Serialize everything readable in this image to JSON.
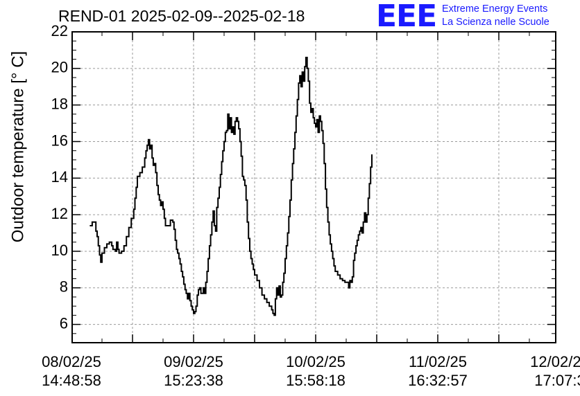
{
  "chart_data": {
    "type": "line",
    "title": "REND-01 2025-02-09--2025-02-18",
    "ylabel": "Outdoor temperature [° C]",
    "xlabel": "",
    "ylim": [
      5,
      22
    ],
    "yticks": [
      6,
      8,
      10,
      12,
      14,
      16,
      18,
      20,
      22
    ],
    "xlim": [
      0,
      4
    ],
    "xtick_labels": [
      {
        "x": 0,
        "date": "08/02/25",
        "time": "14:48:58"
      },
      {
        "x": 1,
        "date": "09/02/25",
        "time": "15:23:38"
      },
      {
        "x": 2,
        "date": "10/02/25",
        "time": "15:58:18"
      },
      {
        "x": 3,
        "date": "11/02/25",
        "time": "16:32:57"
      },
      {
        "x": 4,
        "date": "12/02/25",
        "time": "17:07:3"
      }
    ],
    "grid": true,
    "series": [
      {
        "name": "",
        "color": "#000000",
        "points": [
          [
            0.15,
            11.4
          ],
          [
            0.17,
            11.6
          ],
          [
            0.19,
            11.6
          ],
          [
            0.2,
            11.1
          ],
          [
            0.21,
            10.8
          ],
          [
            0.22,
            10.3
          ],
          [
            0.23,
            9.8
          ],
          [
            0.24,
            9.4
          ],
          [
            0.25,
            9.9
          ],
          [
            0.27,
            10.2
          ],
          [
            0.29,
            10.4
          ],
          [
            0.31,
            10.5
          ],
          [
            0.33,
            10.3
          ],
          [
            0.34,
            10.1
          ],
          [
            0.36,
            10.0
          ],
          [
            0.37,
            10.5
          ],
          [
            0.38,
            10.1
          ],
          [
            0.39,
            9.9
          ],
          [
            0.41,
            10.0
          ],
          [
            0.43,
            10.3
          ],
          [
            0.45,
            10.8
          ],
          [
            0.47,
            11.3
          ],
          [
            0.49,
            11.8
          ],
          [
            0.51,
            12.3
          ],
          [
            0.52,
            12.9
          ],
          [
            0.53,
            13.5
          ],
          [
            0.54,
            14.1
          ],
          [
            0.56,
            14.3
          ],
          [
            0.58,
            14.6
          ],
          [
            0.6,
            15.1
          ],
          [
            0.61,
            15.5
          ],
          [
            0.62,
            15.8
          ],
          [
            0.63,
            16.1
          ],
          [
            0.64,
            15.6
          ],
          [
            0.65,
            15.8
          ],
          [
            0.66,
            15.1
          ],
          [
            0.67,
            14.7
          ],
          [
            0.68,
            14.8
          ],
          [
            0.69,
            14.3
          ],
          [
            0.7,
            13.6
          ],
          [
            0.71,
            13.1
          ],
          [
            0.72,
            12.8
          ],
          [
            0.73,
            12.5
          ],
          [
            0.74,
            12.7
          ],
          [
            0.75,
            12.3
          ],
          [
            0.76,
            11.8
          ],
          [
            0.77,
            11.4
          ],
          [
            0.79,
            11.4
          ],
          [
            0.81,
            11.7
          ],
          [
            0.83,
            11.6
          ],
          [
            0.84,
            11.2
          ],
          [
            0.85,
            10.6
          ],
          [
            0.86,
            10.1
          ],
          [
            0.87,
            9.9
          ],
          [
            0.88,
            9.6
          ],
          [
            0.89,
            9.3
          ],
          [
            0.9,
            8.9
          ],
          [
            0.91,
            8.6
          ],
          [
            0.92,
            8.2
          ],
          [
            0.93,
            7.9
          ],
          [
            0.94,
            7.7
          ],
          [
            0.95,
            7.4
          ],
          [
            0.96,
            7.7
          ],
          [
            0.97,
            7.3
          ],
          [
            0.98,
            7.0
          ],
          [
            0.99,
            6.8
          ],
          [
            1.0,
            6.6
          ],
          [
            1.01,
            6.7
          ],
          [
            1.02,
            7.0
          ],
          [
            1.03,
            7.6
          ],
          [
            1.04,
            7.9
          ],
          [
            1.05,
            8.0
          ],
          [
            1.06,
            7.7
          ],
          [
            1.07,
            7.7
          ],
          [
            1.08,
            8.0
          ],
          [
            1.09,
            7.7
          ],
          [
            1.1,
            8.3
          ],
          [
            1.11,
            8.9
          ],
          [
            1.12,
            9.6
          ],
          [
            1.13,
            10.3
          ],
          [
            1.14,
            10.9
          ],
          [
            1.15,
            11.6
          ],
          [
            1.16,
            12.2
          ],
          [
            1.17,
            11.4
          ],
          [
            1.18,
            11.1
          ],
          [
            1.19,
            12.4
          ],
          [
            1.2,
            12.9
          ],
          [
            1.21,
            13.5
          ],
          [
            1.22,
            14.2
          ],
          [
            1.23,
            14.9
          ],
          [
            1.24,
            15.5
          ],
          [
            1.25,
            16.0
          ],
          [
            1.26,
            16.5
          ],
          [
            1.27,
            16.6
          ],
          [
            1.28,
            17.5
          ],
          [
            1.29,
            16.7
          ],
          [
            1.3,
            17.3
          ],
          [
            1.31,
            16.5
          ],
          [
            1.32,
            16.8
          ],
          [
            1.33,
            16.4
          ],
          [
            1.34,
            17.1
          ],
          [
            1.35,
            17.3
          ],
          [
            1.36,
            17.1
          ],
          [
            1.37,
            16.7
          ],
          [
            1.38,
            16.0
          ],
          [
            1.39,
            15.2
          ],
          [
            1.4,
            14.1
          ],
          [
            1.41,
            13.9
          ],
          [
            1.42,
            13.6
          ],
          [
            1.43,
            12.8
          ],
          [
            1.44,
            11.6
          ],
          [
            1.45,
            10.7
          ],
          [
            1.46,
            10.0
          ],
          [
            1.47,
            9.6
          ],
          [
            1.48,
            9.3
          ],
          [
            1.49,
            9.0
          ],
          [
            1.5,
            8.7
          ],
          [
            1.52,
            8.4
          ],
          [
            1.54,
            8.0
          ],
          [
            1.56,
            7.6
          ],
          [
            1.58,
            7.4
          ],
          [
            1.6,
            7.2
          ],
          [
            1.62,
            7.0
          ],
          [
            1.64,
            6.8
          ],
          [
            1.65,
            6.6
          ],
          [
            1.66,
            6.5
          ],
          [
            1.67,
            7.4
          ],
          [
            1.68,
            8.0
          ],
          [
            1.69,
            7.6
          ],
          [
            1.7,
            8.1
          ],
          [
            1.71,
            7.5
          ],
          [
            1.72,
            7.6
          ],
          [
            1.73,
            8.3
          ],
          [
            1.74,
            8.8
          ],
          [
            1.75,
            9.6
          ],
          [
            1.76,
            10.3
          ],
          [
            1.77,
            11.0
          ],
          [
            1.78,
            11.9
          ],
          [
            1.79,
            12.8
          ],
          [
            1.8,
            13.9
          ],
          [
            1.81,
            14.8
          ],
          [
            1.82,
            15.6
          ],
          [
            1.83,
            16.5
          ],
          [
            1.84,
            17.4
          ],
          [
            1.85,
            18.3
          ],
          [
            1.86,
            19.2
          ],
          [
            1.87,
            19.6
          ],
          [
            1.88,
            19.0
          ],
          [
            1.89,
            19.8
          ],
          [
            1.9,
            19.3
          ],
          [
            1.91,
            20.1
          ],
          [
            1.92,
            20.6
          ],
          [
            1.93,
            20.0
          ],
          [
            1.94,
            19.3
          ],
          [
            1.95,
            18.1
          ],
          [
            1.96,
            17.6
          ],
          [
            1.97,
            17.8
          ],
          [
            1.98,
            17.3
          ],
          [
            1.99,
            17.0
          ],
          [
            2.0,
            16.8
          ],
          [
            2.01,
            17.2
          ],
          [
            2.02,
            16.5
          ],
          [
            2.03,
            17.4
          ],
          [
            2.04,
            17.1
          ],
          [
            2.05,
            16.6
          ],
          [
            2.06,
            15.9
          ],
          [
            2.07,
            14.8
          ],
          [
            2.08,
            13.4
          ],
          [
            2.09,
            12.4
          ],
          [
            2.1,
            11.6
          ],
          [
            2.11,
            10.9
          ],
          [
            2.12,
            10.4
          ],
          [
            2.13,
            10.0
          ],
          [
            2.14,
            9.6
          ],
          [
            2.15,
            9.2
          ],
          [
            2.16,
            8.9
          ],
          [
            2.18,
            8.7
          ],
          [
            2.2,
            8.5
          ],
          [
            2.22,
            8.4
          ],
          [
            2.24,
            8.3
          ],
          [
            2.26,
            8.3
          ],
          [
            2.27,
            8.0
          ],
          [
            2.28,
            8.4
          ],
          [
            2.29,
            8.3
          ],
          [
            2.3,
            8.6
          ],
          [
            2.31,
            9.5
          ],
          [
            2.32,
            9.9
          ],
          [
            2.33,
            10.3
          ],
          [
            2.34,
            10.6
          ],
          [
            2.35,
            10.9
          ],
          [
            2.36,
            11.1
          ],
          [
            2.37,
            11.3
          ],
          [
            2.38,
            11.0
          ],
          [
            2.39,
            11.6
          ],
          [
            2.4,
            12.1
          ],
          [
            2.41,
            11.6
          ],
          [
            2.42,
            12.0
          ],
          [
            2.43,
            12.9
          ],
          [
            2.44,
            13.7
          ],
          [
            2.45,
            14.6
          ],
          [
            2.46,
            15.3
          ]
        ]
      }
    ]
  }
}
